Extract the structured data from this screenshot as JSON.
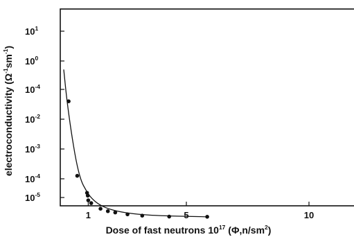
{
  "chart_data": {
    "type": "scatter",
    "title": "",
    "xlabel": {
      "main": "Dose of fast neutrons 10",
      "exp": "17",
      "units_open": " (Φ,n/sm",
      "units_exp": "2",
      "units_close": ")"
    },
    "ylabel": {
      "main": "electroconductivity (Ω",
      "exp1": "-1",
      "mid": "sm",
      "exp2": "-1",
      "close": ")"
    },
    "xlim": [
      0,
      11
    ],
    "x_ticks": [
      {
        "value": 1,
        "label": "1"
      },
      {
        "value": 5,
        "label": "5"
      },
      {
        "value": 10,
        "label": "10"
      }
    ],
    "y_ticks": [
      {
        "base": "10",
        "exp": "1"
      },
      {
        "base": "10",
        "exp": "0"
      },
      {
        "base": "10",
        "exp": "-4"
      },
      {
        "base": "10",
        "exp": "-2"
      },
      {
        "base": "10",
        "exp": "-3"
      },
      {
        "base": "10",
        "exp": "-4"
      },
      {
        "base": "10",
        "exp": "-5"
      }
    ],
    "points": [
      {
        "x": 0.2,
        "y_tick": 2.4
      },
      {
        "x": 0.55,
        "y_tick": 4.9
      },
      {
        "x": 0.95,
        "y_tick": 5.75
      },
      {
        "x": 0.98,
        "y_tick": 5.9
      },
      {
        "x": 1.0,
        "y_tick": 6.15
      },
      {
        "x": 1.12,
        "y_tick": 6.3
      },
      {
        "x": 1.5,
        "y_tick": 6.6
      },
      {
        "x": 1.8,
        "y_tick": 6.73
      },
      {
        "x": 2.1,
        "y_tick": 6.8
      },
      {
        "x": 2.6,
        "y_tick": 6.9
      },
      {
        "x": 3.2,
        "y_tick": 6.97
      },
      {
        "x": 4.3,
        "y_tick": 7.02
      },
      {
        "x": 5.85,
        "y_tick": 7.03
      }
    ],
    "curve": [
      {
        "x": 0.0,
        "y_tick": 1.3
      },
      {
        "x": 0.12,
        "y_tick": 2.3
      },
      {
        "x": 0.3,
        "y_tick": 3.4
      },
      {
        "x": 0.5,
        "y_tick": 4.4
      },
      {
        "x": 0.7,
        "y_tick": 5.1
      },
      {
        "x": 0.9,
        "y_tick": 5.6
      },
      {
        "x": 1.1,
        "y_tick": 6.0
      },
      {
        "x": 1.4,
        "y_tick": 6.35
      },
      {
        "x": 1.8,
        "y_tick": 6.6
      },
      {
        "x": 2.3,
        "y_tick": 6.77
      },
      {
        "x": 3.0,
        "y_tick": 6.9
      },
      {
        "x": 4.0,
        "y_tick": 6.98
      },
      {
        "x": 5.85,
        "y_tick": 7.03
      }
    ],
    "legend": "none",
    "grid": false
  }
}
